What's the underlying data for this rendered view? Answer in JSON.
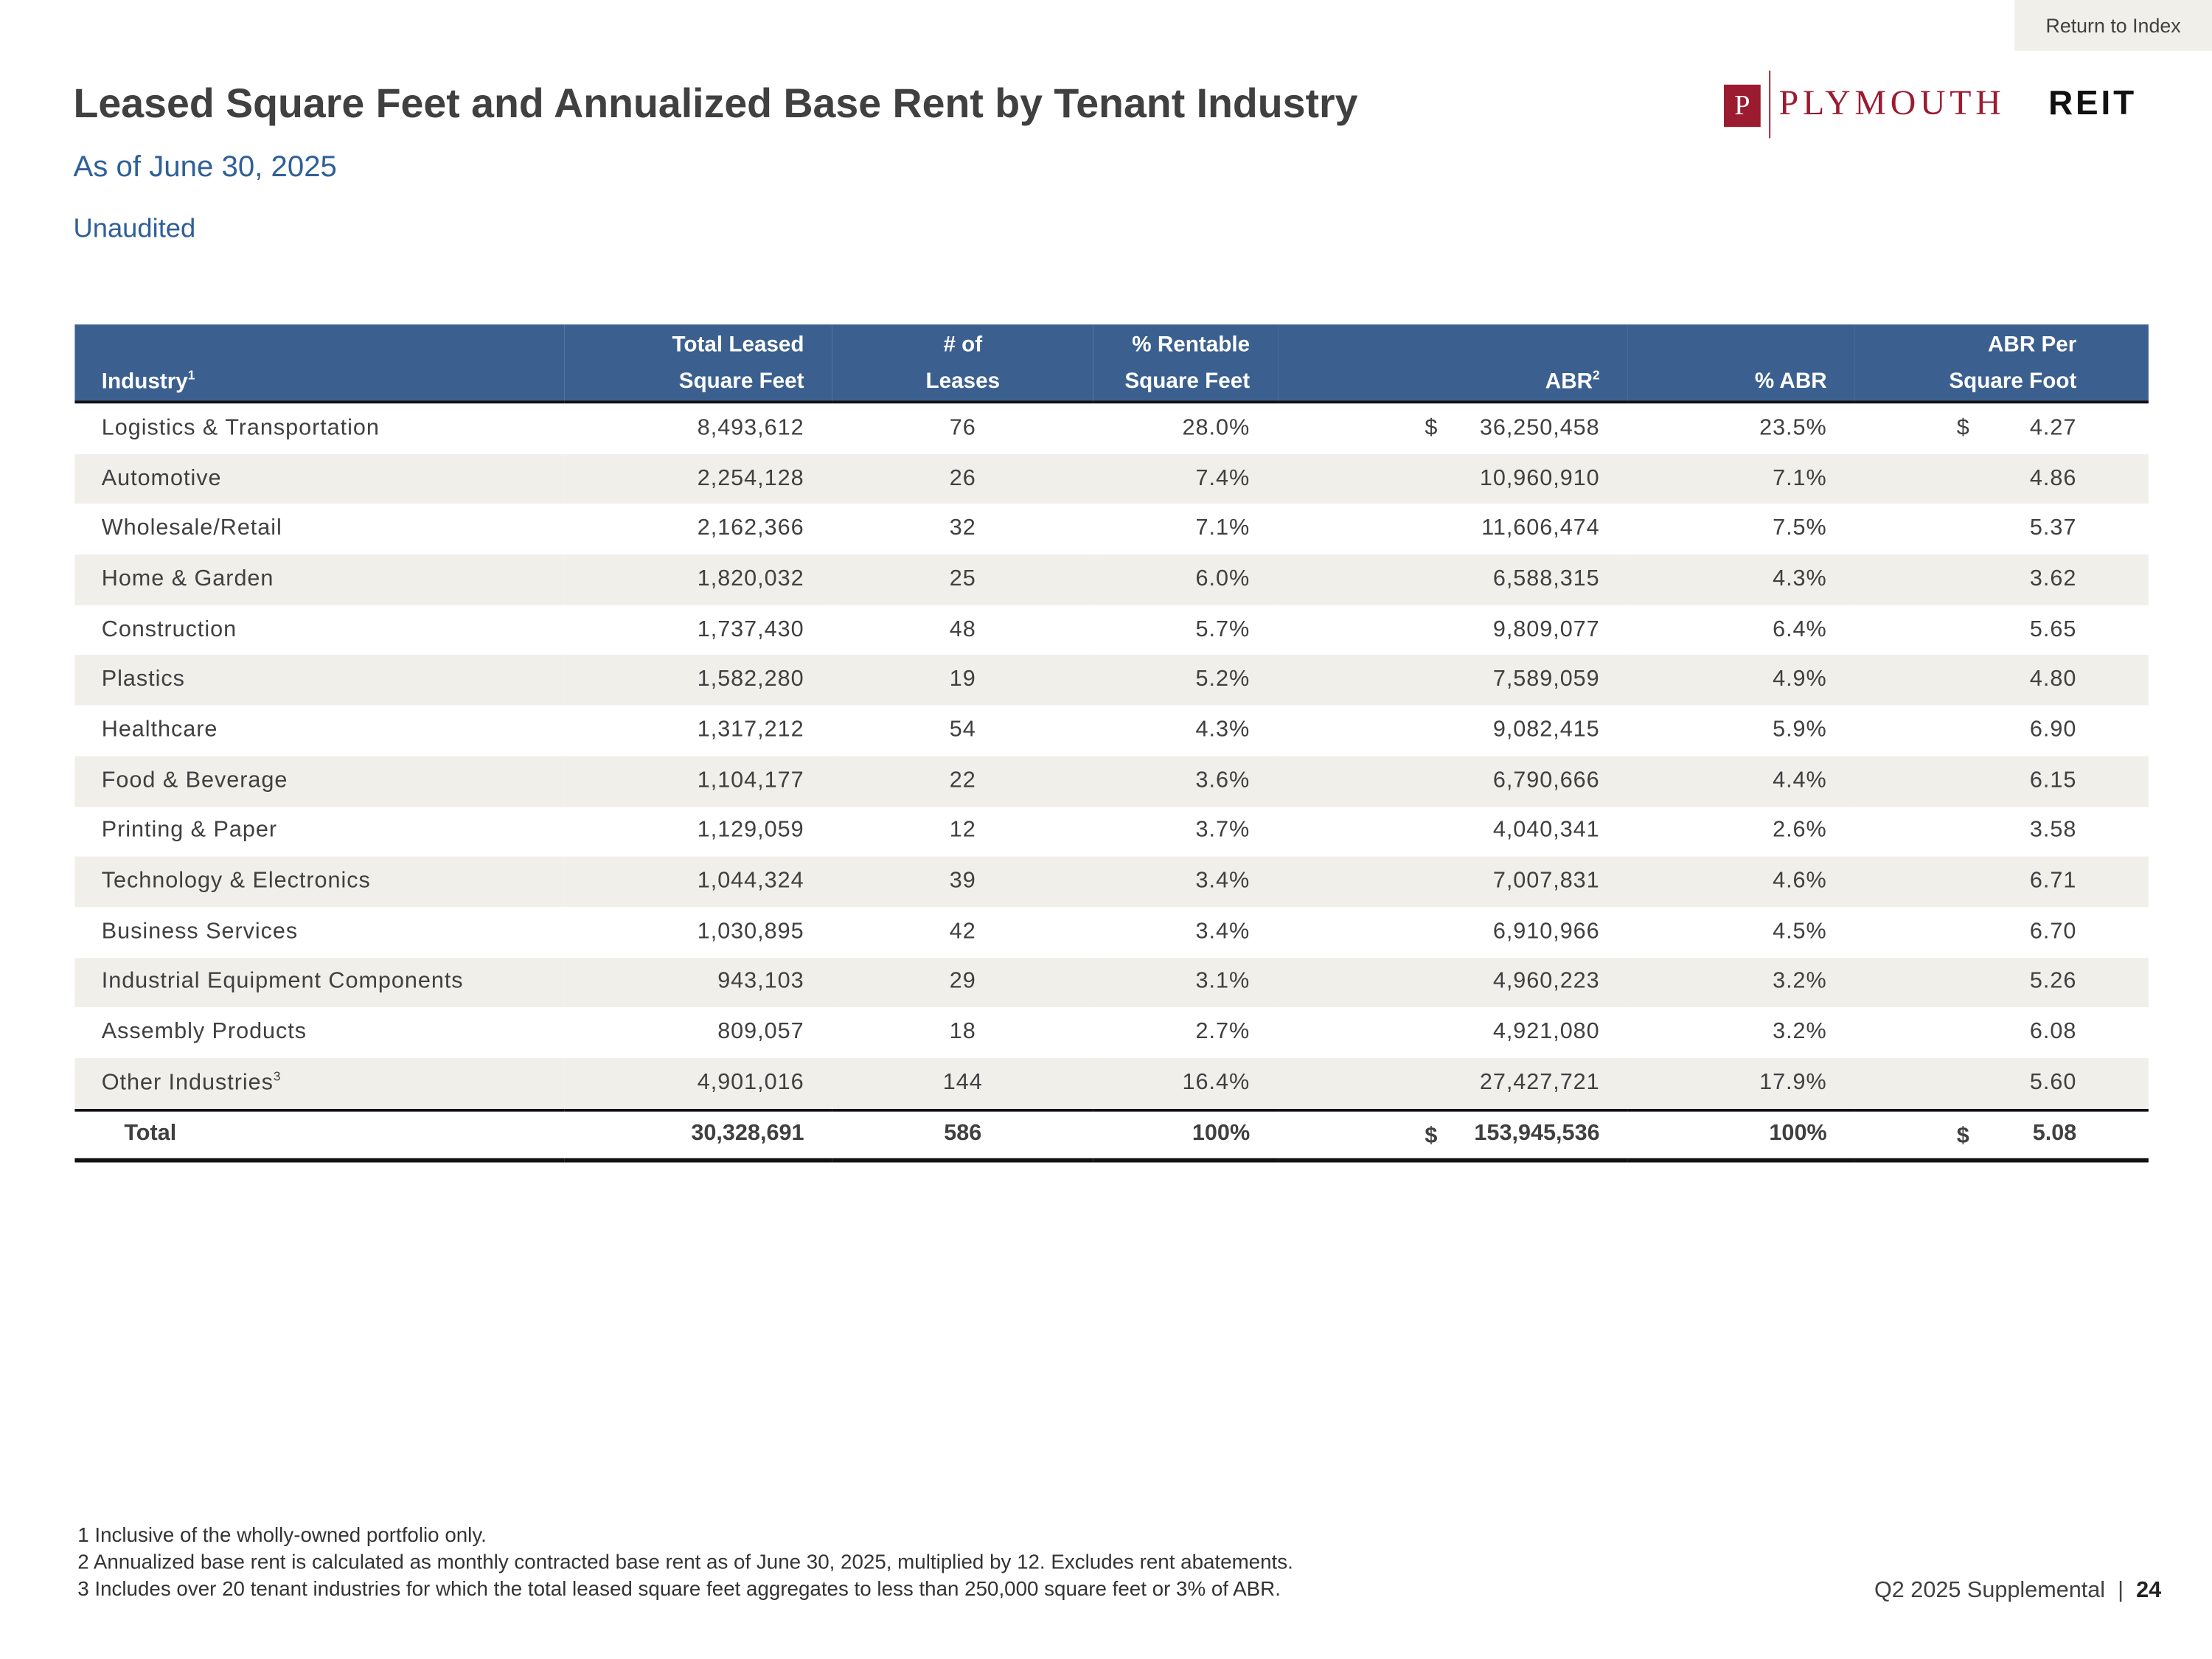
{
  "return_link": "Return to Index",
  "header": {
    "title": "Leased Square Feet and Annualized Base Rent by Tenant Industry",
    "subtitle": "As of June 30, 2025",
    "status": "Unaudited"
  },
  "logo": {
    "initial": "P",
    "name": "PLYMOUTH",
    "suffix": "REIT"
  },
  "table": {
    "columns": [
      {
        "lines": [
          "Industry"
        ],
        "note": "1"
      },
      {
        "lines": [
          "Total Leased",
          "Square Feet"
        ]
      },
      {
        "lines": [
          "# of",
          "Leases"
        ]
      },
      {
        "lines": [
          "% Rentable",
          "Square Feet"
        ]
      },
      {
        "lines": [
          "ABR"
        ],
        "note": "2"
      },
      {
        "lines": [
          "% ABR"
        ]
      },
      {
        "lines": [
          "ABR Per",
          "Square Foot"
        ]
      }
    ],
    "rows": [
      [
        {
          "text": "Logistics & Transportation"
        },
        "8,493,612",
        "76",
        "28.0%",
        {
          "currency": "$",
          "amount": "36,250,458"
        },
        "23.5%",
        {
          "currency": "$",
          "amount": "4.27"
        }
      ],
      [
        {
          "text": "Automotive"
        },
        "2,254,128",
        "26",
        "7.4%",
        "10,960,910",
        "7.1%",
        "4.86"
      ],
      [
        {
          "text": "Wholesale/Retail"
        },
        "2,162,366",
        "32",
        "7.1%",
        "11,606,474",
        "7.5%",
        "5.37"
      ],
      [
        {
          "text": "Home & Garden"
        },
        "1,820,032",
        "25",
        "6.0%",
        "6,588,315",
        "4.3%",
        "3.62"
      ],
      [
        {
          "text": "Construction"
        },
        "1,737,430",
        "48",
        "5.7%",
        "9,809,077",
        "6.4%",
        "5.65"
      ],
      [
        {
          "text": "Plastics"
        },
        "1,582,280",
        "19",
        "5.2%",
        "7,589,059",
        "4.9%",
        "4.80"
      ],
      [
        {
          "text": "Healthcare"
        },
        "1,317,212",
        "54",
        "4.3%",
        "9,082,415",
        "5.9%",
        "6.90"
      ],
      [
        {
          "text": "Food & Beverage"
        },
        "1,104,177",
        "22",
        "3.6%",
        "6,790,666",
        "4.4%",
        "6.15"
      ],
      [
        {
          "text": "Printing & Paper"
        },
        "1,129,059",
        "12",
        "3.7%",
        "4,040,341",
        "2.6%",
        "3.58"
      ],
      [
        {
          "text": "Technology & Electronics"
        },
        "1,044,324",
        "39",
        "3.4%",
        "7,007,831",
        "4.6%",
        "6.71"
      ],
      [
        {
          "text": "Business Services"
        },
        "1,030,895",
        "42",
        "3.4%",
        "6,910,966",
        "4.5%",
        "6.70"
      ],
      [
        {
          "text": "Industrial Equipment Components"
        },
        "943,103",
        "29",
        "3.1%",
        "4,960,223",
        "3.2%",
        "5.26"
      ],
      [
        {
          "text": "Assembly Products"
        },
        "809,057",
        "18",
        "2.7%",
        "4,921,080",
        "3.2%",
        "6.08"
      ],
      [
        {
          "text": "Other Industries",
          "note": "3"
        },
        "4,901,016",
        "144",
        "16.4%",
        "27,427,721",
        "17.9%",
        "5.60"
      ]
    ],
    "total": [
      {
        "text": "Total"
      },
      "30,328,691",
      "586",
      "100%",
      {
        "currency": "$",
        "amount": "153,945,536"
      },
      "100%",
      {
        "currency": "$",
        "amount": "5.08"
      }
    ]
  },
  "footnotes": [
    "1  Inclusive of the wholly-owned portfolio only.",
    "2  Annualized base rent is calculated as monthly contracted base rent as of June 30, 2025, multiplied by 12. Excludes rent abatements.",
    "3  Includes over 20 tenant industries for which the total leased square feet aggregates to less than 250,000 square feet or 3% of ABR."
  ],
  "footer": {
    "label": "Q2 2025 Supplemental",
    "separator": "|",
    "page": "24"
  }
}
